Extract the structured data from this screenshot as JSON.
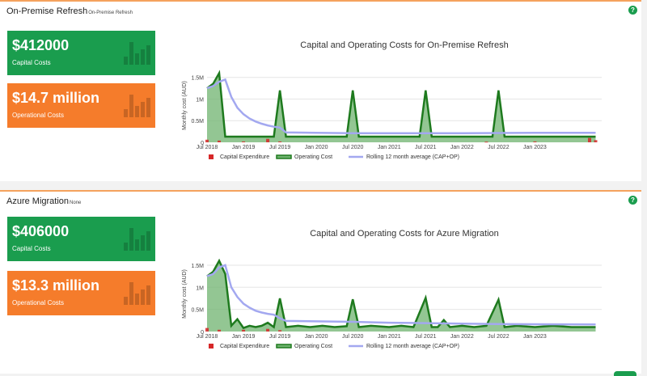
{
  "panels": [
    {
      "title": "On-Premise Refresh",
      "subtitle": "On-Premise Refresh",
      "help": "?",
      "capital": {
        "value": "$412000",
        "label": "Capital Costs"
      },
      "operational": {
        "value": "$14.7 million",
        "label": "Operational Costs"
      }
    },
    {
      "title": "Azure Migration",
      "subtitle": "None",
      "help": "?",
      "capital": {
        "value": "$406000",
        "label": "Capital Costs"
      },
      "operational": {
        "value": "$13.3 million",
        "label": "Operational Costs"
      }
    }
  ],
  "colors": {
    "capital": "#d62728",
    "operating_line": "#1e7a1e",
    "operating_fill": "#6fb36f",
    "rolling": "#a3a8f0",
    "card_green": "#1a9d4e",
    "card_orange": "#f57c2b"
  },
  "chart_data": [
    {
      "type": "area",
      "title": "Capital and Operating Costs for On-Premise Refresh",
      "ylabel": "Monthly cost (AUD)",
      "xlabel": "",
      "x_range": [
        "2018-07",
        "2023-12"
      ],
      "ylim": [
        0,
        1700000
      ],
      "y_ticks": [
        0,
        500000,
        1000000,
        1500000
      ],
      "y_tick_labels": [
        "0",
        "0.5M",
        "1M",
        "1.5M"
      ],
      "x_ticks": [
        "2018-07",
        "2019-01",
        "2019-07",
        "2020-01",
        "2020-07",
        "2021-01",
        "2021-07",
        "2022-01",
        "2022-07",
        "2023-01"
      ],
      "x_tick_labels": [
        "Jul 2018",
        "Jan 2019",
        "Jul 2019",
        "Jan 2020",
        "Jul 2020",
        "Jan 2021",
        "Jul 2021",
        "Jan 2022",
        "Jul 2022",
        "Jan 2023"
      ],
      "legend": [
        "Capital Expenditure",
        "Operating Cost",
        "Rolling 12 month average (CAP+OP)"
      ],
      "legend_position": "bottom",
      "series": [
        {
          "name": "Operating Cost",
          "points": [
            [
              "2018-07",
              1250000
            ],
            [
              "2018-08",
              1350000
            ],
            [
              "2018-09",
              1600000
            ],
            [
              "2018-10",
              130000
            ],
            [
              "2019-06",
              130000
            ],
            [
              "2019-07",
              1200000
            ],
            [
              "2019-08",
              130000
            ],
            [
              "2020-06",
              130000
            ],
            [
              "2020-07",
              1200000
            ],
            [
              "2020-08",
              130000
            ],
            [
              "2021-06",
              130000
            ],
            [
              "2021-07",
              1200000
            ],
            [
              "2021-08",
              130000
            ],
            [
              "2022-06",
              130000
            ],
            [
              "2022-07",
              1200000
            ],
            [
              "2022-08",
              130000
            ],
            [
              "2023-11",
              130000
            ]
          ]
        },
        {
          "name": "Rolling 12 month average (CAP+OP)",
          "points": [
            [
              "2018-07",
              1250000
            ],
            [
              "2018-08",
              1300000
            ],
            [
              "2018-09",
              1400000
            ],
            [
              "2018-10",
              1450000
            ],
            [
              "2018-11",
              1050000
            ],
            [
              "2018-12",
              800000
            ],
            [
              "2019-01",
              650000
            ],
            [
              "2019-02",
              550000
            ],
            [
              "2019-03",
              480000
            ],
            [
              "2019-04",
              430000
            ],
            [
              "2019-05",
              390000
            ],
            [
              "2019-06",
              360000
            ],
            [
              "2019-07",
              340000
            ],
            [
              "2019-08",
              230000
            ],
            [
              "2020-01",
              220000
            ],
            [
              "2020-07",
              210000
            ],
            [
              "2021-01",
              210000
            ],
            [
              "2021-07",
              210000
            ],
            [
              "2022-01",
              210000
            ],
            [
              "2022-07",
              215000
            ],
            [
              "2023-01",
              220000
            ],
            [
              "2023-11",
              220000
            ]
          ]
        },
        {
          "name": "Capital Expenditure",
          "points": [
            [
              "2018-07",
              60000
            ],
            [
              "2018-09",
              40000
            ],
            [
              "2019-01",
              20000
            ],
            [
              "2019-05",
              80000
            ],
            [
              "2019-07",
              20000
            ],
            [
              "2022-05",
              15000
            ],
            [
              "2023-01",
              20000
            ],
            [
              "2023-10",
              100000
            ],
            [
              "2023-11",
              50000
            ]
          ]
        }
      ]
    },
    {
      "type": "area",
      "title": "Capital and Operating Costs for Azure Migration",
      "ylabel": "Monthly cost (AUD)",
      "xlabel": "",
      "x_range": [
        "2018-07",
        "2023-12"
      ],
      "ylim": [
        0,
        1700000
      ],
      "y_ticks": [
        0,
        500000,
        1000000,
        1500000
      ],
      "y_tick_labels": [
        "0",
        "0.5M",
        "1M",
        "1.5M"
      ],
      "x_ticks": [
        "2018-07",
        "2019-01",
        "2019-07",
        "2020-01",
        "2020-07",
        "2021-01",
        "2021-07",
        "2022-01",
        "2022-07",
        "2023-01"
      ],
      "x_tick_labels": [
        "Jul 2018",
        "Jan 2019",
        "Jul 2019",
        "Jan 2020",
        "Jul 2020",
        "Jan 2021",
        "Jul 2021",
        "Jan 2022",
        "Jul 2022",
        "Jan 2023"
      ],
      "legend": [
        "Capital Expenditure",
        "Operating Cost",
        "Rolling 12 month average (CAP+OP)"
      ],
      "legend_position": "bottom",
      "series": [
        {
          "name": "Operating Cost",
          "points": [
            [
              "2018-07",
              1250000
            ],
            [
              "2018-08",
              1350000
            ],
            [
              "2018-09",
              1600000
            ],
            [
              "2018-10",
              1300000
            ],
            [
              "2018-11",
              130000
            ],
            [
              "2018-12",
              280000
            ],
            [
              "2019-01",
              80000
            ],
            [
              "2019-02",
              130000
            ],
            [
              "2019-03",
              100000
            ],
            [
              "2019-04",
              130000
            ],
            [
              "2019-05",
              200000
            ],
            [
              "2019-06",
              100000
            ],
            [
              "2019-07",
              750000
            ],
            [
              "2019-08",
              100000
            ],
            [
              "2019-10",
              130000
            ],
            [
              "2019-12",
              100000
            ],
            [
              "2020-02",
              130000
            ],
            [
              "2020-04",
              100000
            ],
            [
              "2020-06",
              120000
            ],
            [
              "2020-07",
              730000
            ],
            [
              "2020-08",
              100000
            ],
            [
              "2020-10",
              130000
            ],
            [
              "2021-01",
              100000
            ],
            [
              "2021-03",
              130000
            ],
            [
              "2021-05",
              100000
            ],
            [
              "2021-07",
              760000
            ],
            [
              "2021-08",
              100000
            ],
            [
              "2021-09",
              100000
            ],
            [
              "2021-10",
              260000
            ],
            [
              "2021-11",
              100000
            ],
            [
              "2022-01",
              130000
            ],
            [
              "2022-03",
              100000
            ],
            [
              "2022-05",
              130000
            ],
            [
              "2022-07",
              720000
            ],
            [
              "2022-08",
              100000
            ],
            [
              "2022-10",
              130000
            ],
            [
              "2023-01",
              100000
            ],
            [
              "2023-04",
              130000
            ],
            [
              "2023-07",
              100000
            ],
            [
              "2023-11",
              100000
            ]
          ]
        },
        {
          "name": "Rolling 12 month average (CAP+OP)",
          "points": [
            [
              "2018-07",
              1250000
            ],
            [
              "2018-08",
              1300000
            ],
            [
              "2018-09",
              1450000
            ],
            [
              "2018-10",
              1500000
            ],
            [
              "2018-11",
              1000000
            ],
            [
              "2018-12",
              780000
            ],
            [
              "2019-01",
              630000
            ],
            [
              "2019-02",
              540000
            ],
            [
              "2019-03",
              470000
            ],
            [
              "2019-04",
              430000
            ],
            [
              "2019-05",
              400000
            ],
            [
              "2019-06",
              380000
            ],
            [
              "2019-07",
              300000
            ],
            [
              "2019-08",
              240000
            ],
            [
              "2020-01",
              230000
            ],
            [
              "2020-07",
              220000
            ],
            [
              "2021-01",
              200000
            ],
            [
              "2021-07",
              190000
            ],
            [
              "2022-01",
              180000
            ],
            [
              "2022-07",
              170000
            ],
            [
              "2023-01",
              165000
            ],
            [
              "2023-11",
              160000
            ]
          ]
        },
        {
          "name": "Capital Expenditure",
          "points": [
            [
              "2018-07",
              80000
            ],
            [
              "2018-09",
              40000
            ],
            [
              "2019-01",
              40000
            ],
            [
              "2019-05",
              60000
            ],
            [
              "2019-07",
              30000
            ]
          ]
        }
      ]
    }
  ]
}
